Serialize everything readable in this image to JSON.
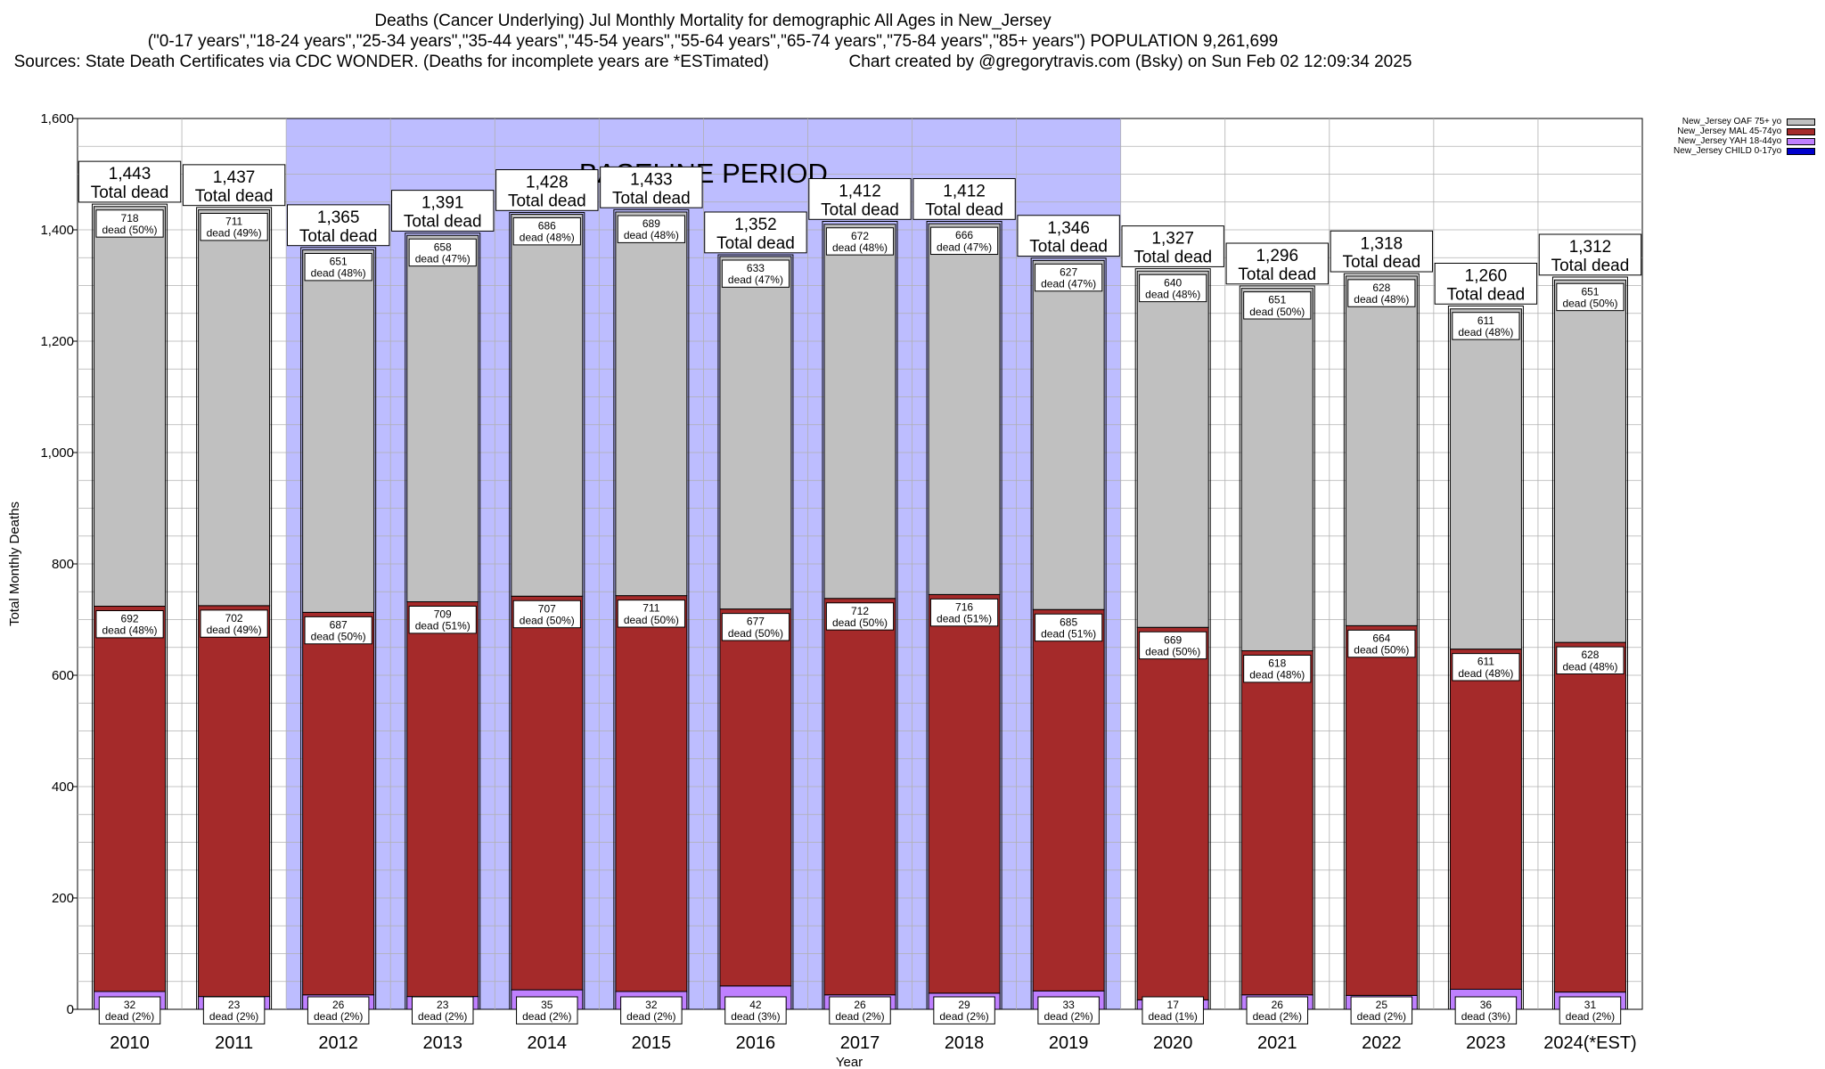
{
  "title": {
    "line1": "Deaths (Cancer Underlying) Jul Monthly Mortality for demographic All Ages in New_Jersey",
    "line2": "(\"0-17 years\",\"18-24 years\",\"25-34 years\",\"35-44 years\",\"45-54 years\",\"55-64 years\",\"65-74 years\",\"75-84 years\",\"85+ years\") POPULATION 9,261,699",
    "line3a": "Sources: State Death Certificates via CDC WONDER. (Deaths for incomplete years are *ESTimated)",
    "line3b": "Chart created by @gregorytravis.com (Bsky) on Sun Feb 02 12:09:34 2025"
  },
  "colors": {
    "oaf": "#c0c0c0",
    "mal": "#a52a2a",
    "yah": "#bf80ff",
    "child": "#0000cd",
    "baseline": "#bdbdff"
  },
  "chart_data": {
    "type": "bar",
    "stacked": true,
    "xlabel": "Year",
    "ylabel": "Total Monthly Deaths",
    "ylim": [
      0,
      1600
    ],
    "yticks": [
      0,
      200,
      400,
      600,
      800,
      1000,
      1200,
      1400,
      1600
    ],
    "ytick_labels": [
      "0",
      "200",
      "400",
      "600",
      "800",
      "1,000",
      "1,200",
      "1,400",
      "1,600"
    ],
    "grid": true,
    "legend_position": "top-right",
    "baseline_label": "BASELINE PERIOD",
    "baseline_range": [
      "2012",
      "2019"
    ],
    "total_suffix": "Total dead",
    "categories": [
      "2010",
      "2011",
      "2012",
      "2013",
      "2014",
      "2015",
      "2016",
      "2017",
      "2018",
      "2019",
      "2020",
      "2021",
      "2022",
      "2023",
      "2024(*EST)"
    ],
    "totals": [
      1443,
      1437,
      1365,
      1391,
      1428,
      1433,
      1352,
      1412,
      1412,
      1346,
      1327,
      1296,
      1318,
      1260,
      1312
    ],
    "total_labels": [
      "1,443",
      "1,437",
      "1,365",
      "1,391",
      "1,428",
      "1,433",
      "1,352",
      "1,412",
      "1,412",
      "1,346",
      "1,327",
      "1,296",
      "1,318",
      "1,260",
      "1,312"
    ],
    "series": [
      {
        "key": "child",
        "name": "New_Jersey CHILD 0-17yo",
        "values": [
          0,
          0,
          0,
          0,
          0,
          0,
          0,
          0,
          0,
          0,
          0,
          0,
          0,
          0,
          0
        ]
      },
      {
        "key": "yah",
        "name": "New_Jersey YAH 18-44yo",
        "values": [
          32,
          23,
          26,
          23,
          35,
          32,
          42,
          26,
          29,
          33,
          17,
          26,
          25,
          36,
          31
        ],
        "labels": [
          "dead (2%)",
          "dead (2%)",
          "dead (2%)",
          "dead (2%)",
          "dead (2%)",
          "dead (2%)",
          "dead (3%)",
          "dead (2%)",
          "dead (2%)",
          "dead (2%)",
          "dead (1%)",
          "dead (2%)",
          "dead (2%)",
          "dead (3%)",
          "dead (2%)"
        ]
      },
      {
        "key": "mal",
        "name": "New_Jersey MAL 45-74yo",
        "values": [
          692,
          702,
          687,
          709,
          707,
          711,
          677,
          712,
          716,
          685,
          669,
          618,
          664,
          611,
          628
        ],
        "labels": [
          "dead (48%)",
          "dead (49%)",
          "dead (50%)",
          "dead (51%)",
          "dead (50%)",
          "dead (50%)",
          "dead (50%)",
          "dead (50%)",
          "dead (51%)",
          "dead (51%)",
          "dead (50%)",
          "dead (48%)",
          "dead (50%)",
          "dead (48%)",
          "dead (48%)"
        ]
      },
      {
        "key": "oaf",
        "name": "New_Jersey OAF 75+ yo",
        "values": [
          718,
          711,
          651,
          658,
          686,
          689,
          633,
          672,
          666,
          627,
          640,
          651,
          628,
          611,
          651
        ],
        "labels": [
          "dead (50%)",
          "dead (49%)",
          "dead (48%)",
          "dead (47%)",
          "dead (48%)",
          "dead (48%)",
          "dead (47%)",
          "dead (48%)",
          "dead (47%)",
          "dead (47%)",
          "dead (48%)",
          "dead (50%)",
          "dead (48%)",
          "dead (48%)",
          "dead (50%)"
        ]
      }
    ]
  }
}
